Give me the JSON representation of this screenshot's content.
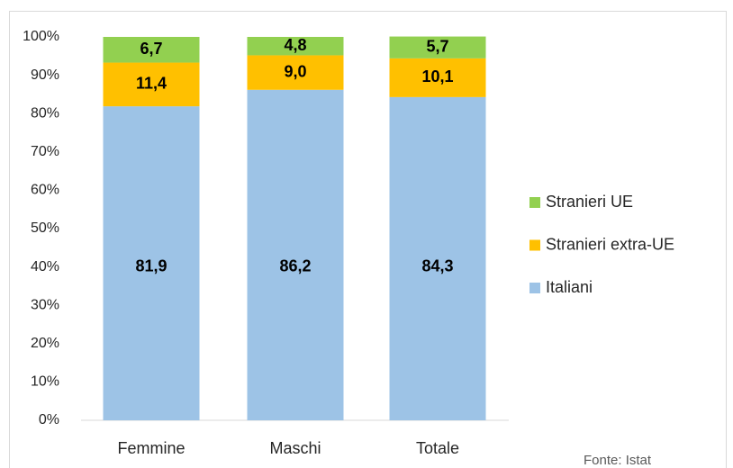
{
  "chart_data": {
    "type": "stacked_bar",
    "categories": [
      "Femmine",
      "Maschi",
      "Totale"
    ],
    "series": [
      {
        "name": "Italiani",
        "color": "#9dc3e6",
        "values": [
          81.9,
          86.2,
          84.3
        ],
        "value_labels": [
          "81,9",
          "86,2",
          "84,3"
        ]
      },
      {
        "name": "Stranieri extra-UE",
        "color": "#ffc000",
        "values": [
          11.4,
          9.0,
          10.1
        ],
        "value_labels": [
          "11,4",
          "9,0",
          "10,1"
        ]
      },
      {
        "name": "Stranieri UE",
        "color": "#92d050",
        "values": [
          6.7,
          4.8,
          5.7
        ],
        "value_labels": [
          "6,7",
          "4,8",
          "5,7"
        ]
      }
    ],
    "ylim": [
      0,
      100
    ],
    "yticks": [
      {
        "value": 0,
        "label": "0%"
      },
      {
        "value": 10,
        "label": "10%"
      },
      {
        "value": 20,
        "label": "20%"
      },
      {
        "value": 30,
        "label": "30%"
      },
      {
        "value": 40,
        "label": "40%"
      },
      {
        "value": 50,
        "label": "50%"
      },
      {
        "value": 60,
        "label": "60%"
      },
      {
        "value": 70,
        "label": "70%"
      },
      {
        "value": 80,
        "label": "80%"
      },
      {
        "value": 90,
        "label": "90%"
      },
      {
        "value": 100,
        "label": "100%"
      }
    ],
    "legend": "right",
    "annotation": "Fonte: Istat"
  }
}
